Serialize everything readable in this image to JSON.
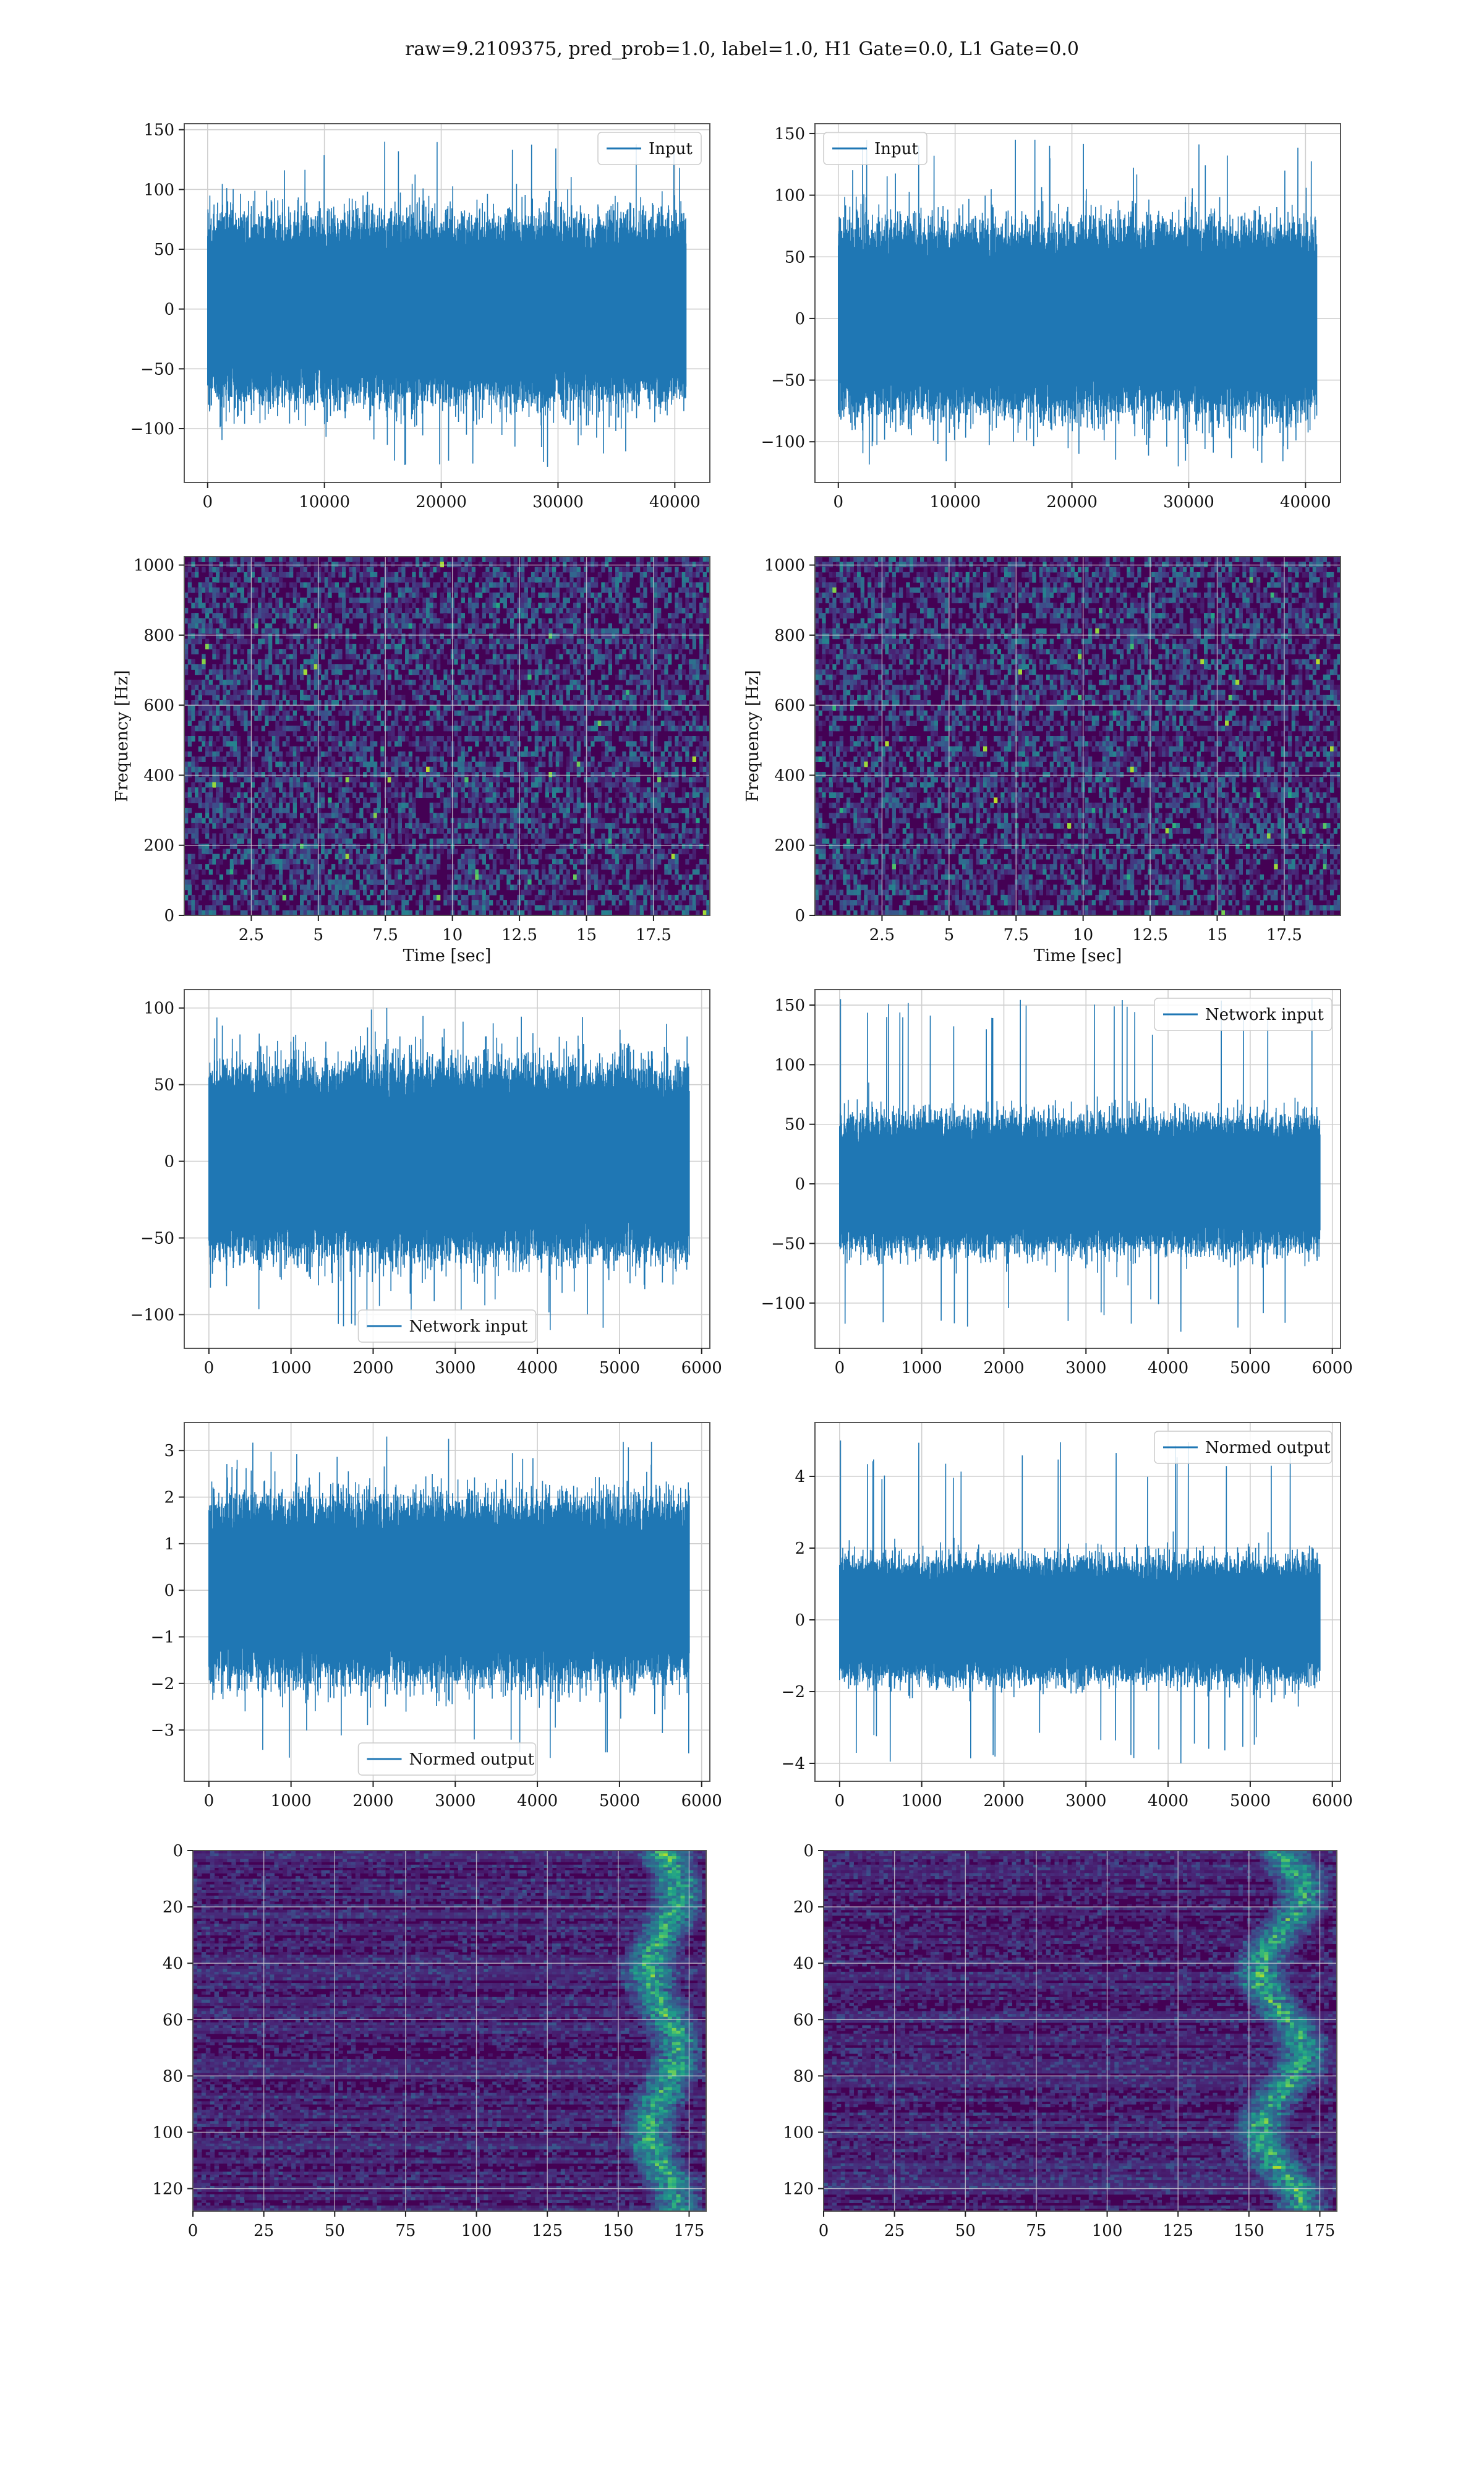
{
  "title": "raw=9.2109375, pred_prob=1.0, label=1.0, H1 Gate=0.0, L1 Gate=0.0",
  "colors": {
    "line": "#1f77b4",
    "grid": "#cfcfcf",
    "spine": "#555555",
    "viridis_low": "#440154"
  },
  "chart_data": [
    {
      "id": "ts-input-h1",
      "type": "line",
      "xlim": [
        -2000,
        43000
      ],
      "ylim": [
        -145,
        155
      ],
      "xticks": [
        0,
        10000,
        20000,
        30000,
        40000
      ],
      "yticks": [
        -100,
        -50,
        0,
        50,
        100,
        150
      ],
      "x_max": 40960,
      "series": [
        {
          "name": "Input",
          "amplitude": 55,
          "peak_max": 140,
          "peak_min": -132
        }
      ],
      "legend": "upper right",
      "grid": true,
      "xlabel": "",
      "ylabel": ""
    },
    {
      "id": "ts-input-l1",
      "type": "line",
      "xlim": [
        -2000,
        43000
      ],
      "ylim": [
        -133,
        158
      ],
      "xticks": [
        0,
        10000,
        20000,
        30000,
        40000
      ],
      "yticks": [
        -100,
        -50,
        0,
        50,
        100,
        150
      ],
      "x_max": 40960,
      "series": [
        {
          "name": "Input",
          "amplitude": 55,
          "peak_max": 145,
          "peak_min": -120
        }
      ],
      "legend": "upper left",
      "grid": true,
      "xlabel": "",
      "ylabel": ""
    },
    {
      "id": "spec-h1",
      "type": "heatmap",
      "xlim": [
        0,
        19.6
      ],
      "ylim": [
        0,
        1024
      ],
      "xticks": [
        2.5,
        5.0,
        7.5,
        10.0,
        12.5,
        15.0,
        17.5
      ],
      "yticks": [
        0,
        200,
        400,
        600,
        800,
        1000
      ],
      "xlabel": "Time [sec]",
      "ylabel": "Frequency [Hz]",
      "grid": true
    },
    {
      "id": "spec-l1",
      "type": "heatmap",
      "xlim": [
        0,
        19.6
      ],
      "ylim": [
        0,
        1024
      ],
      "xticks": [
        2.5,
        5.0,
        7.5,
        10.0,
        12.5,
        15.0,
        17.5
      ],
      "yticks": [
        0,
        200,
        400,
        600,
        800,
        1000
      ],
      "xlabel": "Time [sec]",
      "ylabel": "Frequency [Hz]",
      "grid": true
    },
    {
      "id": "ts-net-h1",
      "type": "line",
      "xlim": [
        -300,
        6100
      ],
      "ylim": [
        -122,
        112
      ],
      "xticks": [
        0,
        1000,
        2000,
        3000,
        4000,
        5000,
        6000
      ],
      "yticks": [
        -100,
        -50,
        0,
        50,
        100
      ],
      "x_max": 5850,
      "series": [
        {
          "name": "Network input",
          "amplitude": 45,
          "peak_max": 100,
          "peak_min": -110
        }
      ],
      "legend": "lower center",
      "grid": true,
      "xlabel": "",
      "ylabel": ""
    },
    {
      "id": "ts-net-l1",
      "type": "line",
      "xlim": [
        -300,
        6100
      ],
      "ylim": [
        -138,
        163
      ],
      "xticks": [
        0,
        1000,
        2000,
        3000,
        4000,
        5000,
        6000
      ],
      "yticks": [
        -100,
        -50,
        0,
        50,
        100,
        150
      ],
      "x_max": 5850,
      "series": [
        {
          "name": "Network input",
          "amplitude": 40,
          "peak_max": 155,
          "peak_min": -124
        }
      ],
      "legend": "upper right",
      "grid": true,
      "xlabel": "",
      "ylabel": ""
    },
    {
      "id": "ts-norm-h1",
      "type": "line",
      "xlim": [
        -300,
        6100
      ],
      "ylim": [
        -4.1,
        3.6
      ],
      "xticks": [
        0,
        1000,
        2000,
        3000,
        4000,
        5000,
        6000
      ],
      "yticks": [
        -3,
        -2,
        -1,
        0,
        1,
        2,
        3
      ],
      "x_max": 5850,
      "series": [
        {
          "name": "Normed output",
          "amplitude": 1.4,
          "peak_max": 3.3,
          "peak_min": -3.6
        }
      ],
      "legend": "lower center",
      "grid": true,
      "xlabel": "",
      "ylabel": ""
    },
    {
      "id": "ts-norm-l1",
      "type": "line",
      "xlim": [
        -300,
        6100
      ],
      "ylim": [
        -4.5,
        5.5
      ],
      "xticks": [
        0,
        1000,
        2000,
        3000,
        4000,
        5000,
        6000
      ],
      "yticks": [
        -4,
        -2,
        0,
        2,
        4
      ],
      "x_max": 5850,
      "series": [
        {
          "name": "Normed output",
          "amplitude": 1.2,
          "peak_max": 5.0,
          "peak_min": -4.0
        }
      ],
      "legend": "upper right",
      "grid": true,
      "xlabel": "",
      "ylabel": ""
    },
    {
      "id": "feat-h1",
      "type": "heatmap",
      "xlim": [
        0,
        181
      ],
      "ylim": [
        128,
        0
      ],
      "xticks": [
        0,
        25,
        50,
        75,
        100,
        125,
        150,
        175
      ],
      "yticks": [
        0,
        20,
        40,
        60,
        80,
        100,
        120
      ],
      "hot_band": [
        155,
        175
      ],
      "xlabel": "",
      "ylabel": "",
      "grid": true
    },
    {
      "id": "feat-l1",
      "type": "heatmap",
      "xlim": [
        0,
        181
      ],
      "ylim": [
        128,
        0
      ],
      "xticks": [
        0,
        25,
        50,
        75,
        100,
        125,
        150,
        175
      ],
      "yticks": [
        0,
        20,
        40,
        60,
        80,
        100,
        120
      ],
      "hot_band": [
        145,
        175
      ],
      "xlabel": "",
      "ylabel": "",
      "grid": true
    }
  ]
}
